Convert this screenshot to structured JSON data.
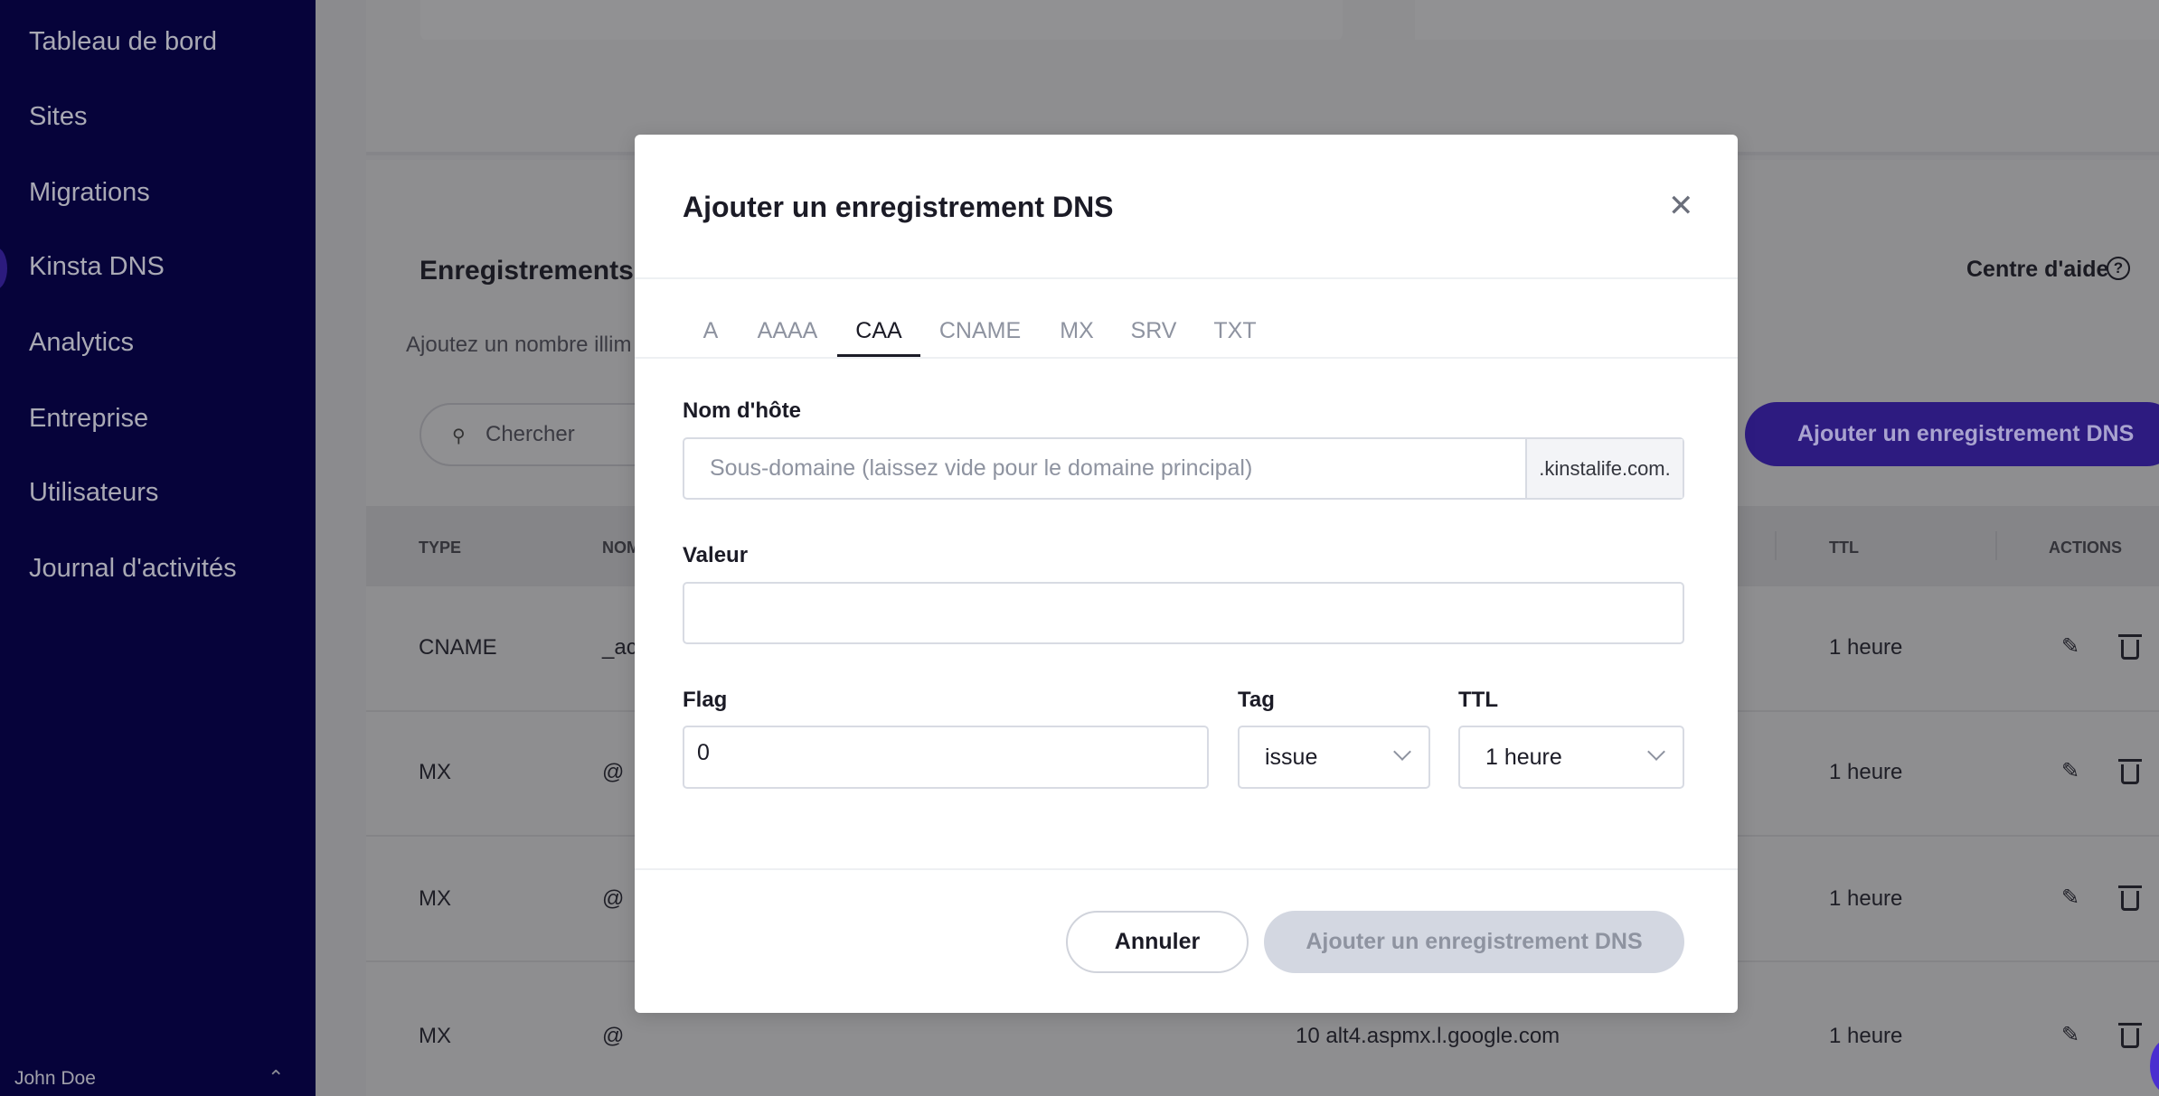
{
  "sidebar": {
    "items": [
      {
        "label": "Tableau de bord"
      },
      {
        "label": "Sites"
      },
      {
        "label": "Migrations"
      },
      {
        "label": "Kinsta DNS",
        "active": true
      },
      {
        "label": "Analytics"
      },
      {
        "label": "Entreprise"
      },
      {
        "label": "Utilisateurs"
      },
      {
        "label": "Journal d'activités"
      }
    ],
    "user": "John Doe"
  },
  "page": {
    "records_title": "Enregistrements",
    "records_desc": "Ajoutez un nombre illim",
    "search_placeholder": "Chercher",
    "help_label": "Centre d'aide",
    "add_button": "Ajouter un enregistrement DNS",
    "table": {
      "headers": [
        "TYPE",
        "NOM",
        "TTL",
        "ACTIONS"
      ],
      "rows": [
        {
          "type": "CNAME",
          "name": "_ac",
          "value": "",
          "ttl": "1 heure"
        },
        {
          "type": "MX",
          "name": "@",
          "value": "",
          "ttl": "1 heure"
        },
        {
          "type": "MX",
          "name": "@",
          "value": "",
          "ttl": "1 heure"
        },
        {
          "type": "MX",
          "name": "@",
          "value": "10 alt4.aspmx.l.google.com",
          "ttl": "1 heure"
        }
      ]
    }
  },
  "modal": {
    "title": "Ajouter un enregistrement DNS",
    "tabs": [
      "A",
      "AAAA",
      "CAA",
      "CNAME",
      "MX",
      "SRV",
      "TXT"
    ],
    "active_tab": "CAA",
    "hostname_label": "Nom d'hôte",
    "hostname_placeholder": "Sous-domaine (laissez vide pour le domaine principal)",
    "hostname_suffix": ".kinstalife.com.",
    "value_label": "Valeur",
    "value": "",
    "flag_label": "Flag",
    "flag_value": "0",
    "tag_label": "Tag",
    "tag_value": "issue",
    "ttl_label": "TTL",
    "ttl_value": "1 heure",
    "cancel_label": "Annuler",
    "submit_label": "Ajouter un enregistrement DNS"
  },
  "colors": {
    "sidebar": "#06033a",
    "accent": "#2d1b80",
    "overlay": "#8b8b8e"
  }
}
